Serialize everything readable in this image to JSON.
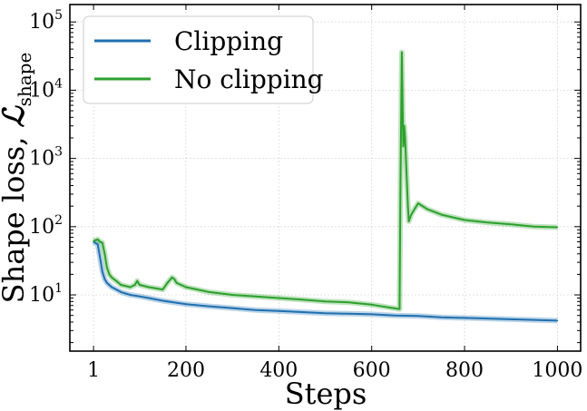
{
  "chart_data": {
    "type": "line",
    "title": "",
    "xlabel": "Steps",
    "ylabel": "Shape loss, ",
    "ylabel_symbol": "ℒ",
    "ylabel_subscript": "shape",
    "xlim": [
      -50,
      1050
    ],
    "ylim": [
      1.5,
      180000
    ],
    "yscale": "log",
    "x_ticks": [
      1,
      200,
      400,
      600,
      800,
      1000
    ],
    "x_tick_labels": [
      "1",
      "200",
      "400",
      "600",
      "800",
      "1000"
    ],
    "y_ticks": [
      10,
      100,
      1000,
      10000,
      100000
    ],
    "y_tick_base": "10",
    "y_tick_exponents": [
      "1",
      "2",
      "3",
      "4",
      "5"
    ],
    "grid": true,
    "legend_position": "top-left",
    "series": [
      {
        "name": "Clipping",
        "color": "#1f6fb0",
        "x": [
          1,
          10,
          15,
          20,
          25,
          30,
          40,
          50,
          60,
          80,
          100,
          120,
          150,
          200,
          250,
          300,
          350,
          400,
          450,
          500,
          550,
          600,
          650,
          700,
          750,
          800,
          850,
          900,
          950,
          1000
        ],
        "y": [
          60,
          55,
          35,
          22,
          17,
          15,
          13,
          12,
          11,
          10,
          9.5,
          9,
          8.2,
          7.3,
          6.8,
          6.4,
          6.0,
          5.8,
          5.6,
          5.4,
          5.3,
          5.2,
          5.0,
          4.9,
          4.7,
          4.6,
          4.5,
          4.4,
          4.3,
          4.2
        ]
      },
      {
        "name": "No clipping",
        "color": "#2ca02c",
        "x": [
          1,
          10,
          15,
          20,
          25,
          30,
          35,
          40,
          50,
          60,
          80,
          90,
          95,
          100,
          120,
          150,
          160,
          170,
          175,
          180,
          200,
          250,
          300,
          350,
          400,
          450,
          500,
          550,
          600,
          640,
          660,
          662,
          665,
          668,
          670,
          672,
          675,
          678,
          680,
          685,
          690,
          700,
          720,
          750,
          800,
          850,
          900,
          950,
          1000
        ],
        "y": [
          62,
          65,
          60,
          58,
          40,
          25,
          20,
          18,
          16,
          14,
          13,
          14,
          16,
          14,
          13,
          12,
          15,
          18,
          17,
          15,
          13,
          11,
          10,
          9.5,
          9,
          8.5,
          8,
          7.8,
          7.2,
          6.5,
          6.2,
          400,
          36000,
          1500,
          3000,
          2000,
          600,
          200,
          120,
          150,
          170,
          220,
          180,
          150,
          125,
          115,
          108,
          100,
          98
        ]
      }
    ]
  }
}
